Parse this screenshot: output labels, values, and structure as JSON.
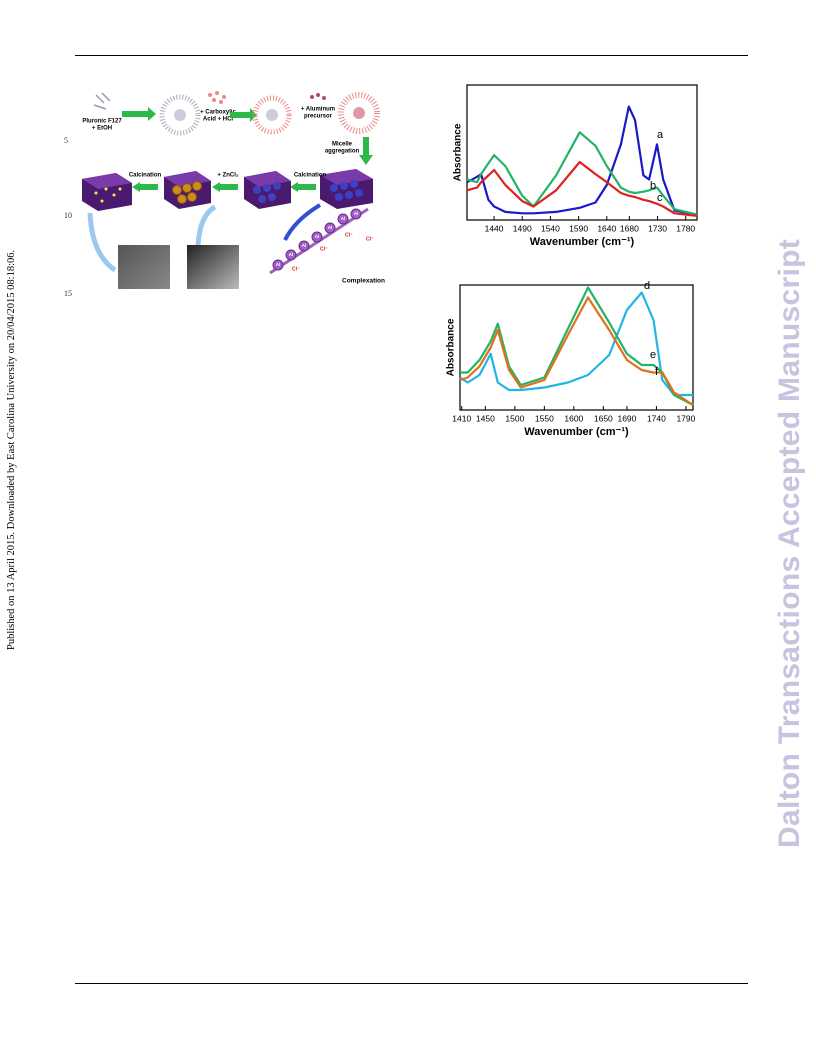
{
  "side_note": "Published on 13 April 2015. Downloaded by East Carolina University on 20/04/2015 08:18:06.",
  "watermark": "Dalton Transactions Accepted Manuscript",
  "line_numbers": [
    "5",
    "10",
    "15"
  ],
  "scheme": {
    "step1": [
      "Pluronic F127",
      "+ EtOH"
    ],
    "step2": [
      "+ Carboxylic",
      "Acid + HCl"
    ],
    "step3": [
      "+ Aluminum",
      "precursor"
    ],
    "step4": [
      "Micelle",
      "aggregation"
    ],
    "calcination": "Calcination",
    "zncl2": "+ ZnCl₂",
    "complexation": "Complexation",
    "al": "Al",
    "cl": "Cl⁻"
  },
  "chart_data": [
    {
      "type": "line",
      "xlabel": "Wavenumber (cm⁻¹)",
      "ylabel": "Absorbance",
      "x": [
        1392,
        1410,
        1417,
        1430,
        1440,
        1460,
        1490,
        1510,
        1550,
        1592,
        1620,
        1640,
        1665,
        1679,
        1690,
        1705,
        1715,
        1729,
        1740,
        1760,
        1800
      ],
      "xlim": [
        1392,
        1800
      ],
      "ylim": [
        0,
        100
      ],
      "xticks": [
        1440,
        1490,
        1540,
        1590,
        1640,
        1680,
        1730,
        1780
      ],
      "series": [
        {
          "name": "a",
          "color": "#1a1ac8",
          "values": [
            28,
            32,
            34,
            15,
            10,
            6,
            5,
            5,
            6,
            9,
            13,
            26,
            56,
            84,
            74,
            33,
            30,
            56,
            30,
            7,
            4
          ]
        },
        {
          "name": "b",
          "color": "#22b466",
          "values": [
            30,
            28,
            34,
            42,
            48,
            40,
            18,
            10,
            33,
            65,
            55,
            40,
            24,
            21,
            20,
            21,
            22,
            24,
            18,
            8,
            4
          ]
        },
        {
          "name": "c",
          "color": "#e02020",
          "values": [
            22,
            24,
            28,
            33,
            37,
            26,
            14,
            10,
            22,
            43,
            34,
            28,
            20,
            18,
            17,
            15,
            14,
            12,
            10,
            5,
            3
          ]
        }
      ]
    },
    {
      "type": "line",
      "xlabel": "Wavenumber (cm⁻¹)",
      "ylabel": "Absorbance",
      "x": [
        1407,
        1420,
        1440,
        1459,
        1471,
        1490,
        1510,
        1550,
        1590,
        1624,
        1660,
        1690,
        1715,
        1735,
        1750,
        1770,
        1802
      ],
      "xlim": [
        1407,
        1802
      ],
      "ylim": [
        0,
        100
      ],
      "xticks": [
        1410,
        1450,
        1500,
        1550,
        1600,
        1650,
        1690,
        1740,
        1790
      ],
      "series": [
        {
          "name": "d",
          "color": "#22b4e4",
          "values": [
            26,
            22,
            28,
            45,
            22,
            16,
            16,
            18,
            22,
            28,
            44,
            80,
            94,
            72,
            24,
            12,
            12
          ]
        },
        {
          "name": "e",
          "color": "#22b466",
          "values": [
            30,
            30,
            40,
            55,
            69,
            35,
            20,
            26,
            65,
            98,
            70,
            45,
            36,
            36,
            30,
            12,
            4
          ]
        },
        {
          "name": "f",
          "color": "#e0701a",
          "values": [
            24,
            26,
            35,
            50,
            64,
            32,
            18,
            24,
            60,
            90,
            64,
            40,
            32,
            30,
            30,
            14,
            4
          ]
        }
      ]
    }
  ]
}
